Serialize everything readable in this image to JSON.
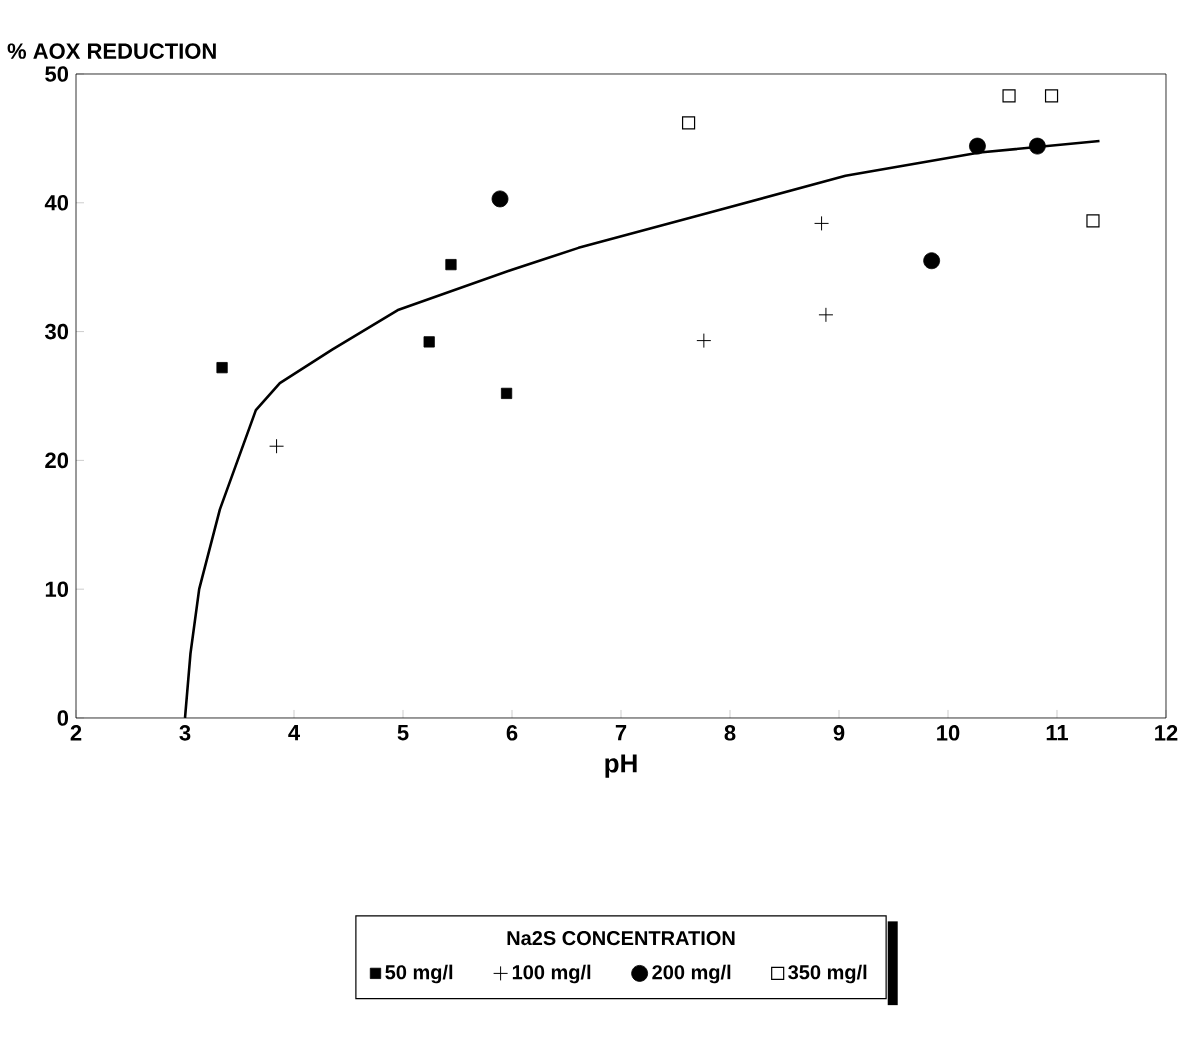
{
  "chart_data": {
    "type": "scatter",
    "ylabel": "% AOX REDUCTION",
    "xlabel": "pH",
    "legend_title": "Na2S CONCENTRATION",
    "xlim": [
      2,
      12
    ],
    "ylim": [
      0,
      50
    ],
    "xticks": [
      2,
      3,
      4,
      5,
      6,
      7,
      8,
      9,
      10,
      11,
      12
    ],
    "yticks": [
      0,
      10,
      20,
      30,
      40,
      50
    ],
    "grid": false,
    "legend": "bottom",
    "series": [
      {
        "name": "50 mg/l",
        "color": "#000000",
        "marker": "square",
        "x": [
          3.34,
          5.24,
          5.44,
          5.95
        ],
        "values": [
          27.2,
          29.2,
          35.2,
          25.2
        ]
      },
      {
        "name": "100 mg/l",
        "color": "#000000",
        "marker": "cross",
        "x": [
          3.84,
          7.76,
          8.84,
          8.88
        ],
        "values": [
          21.1,
          29.3,
          38.4,
          31.3
        ]
      },
      {
        "name": "200 mg/l",
        "color": "#000000",
        "marker": "circle",
        "x": [
          5.89,
          9.85,
          10.27,
          10.82
        ],
        "values": [
          40.3,
          35.5,
          44.4,
          44.4
        ]
      },
      {
        "name": "350 mg/l",
        "color": "#000000",
        "marker": "square",
        "x": [
          7.62,
          10.56,
          10.95,
          11.33
        ],
        "values": [
          46.2,
          48.3,
          48.3,
          38.6
        ]
      },
      {
        "type": "line",
        "color": "#000000",
        "marker": "none",
        "x": [
          3,
          3.05,
          3.13,
          3.32,
          3.65,
          3.87,
          4.35,
          4.96,
          6,
          6.61,
          7.84,
          9.06,
          10.29,
          11.39
        ],
        "values": [
          0,
          5,
          10,
          16.2,
          23.9,
          26,
          28.6,
          31.7,
          34.8,
          36.5,
          39.3,
          42.1,
          43.9,
          44.8
        ]
      }
    ]
  }
}
